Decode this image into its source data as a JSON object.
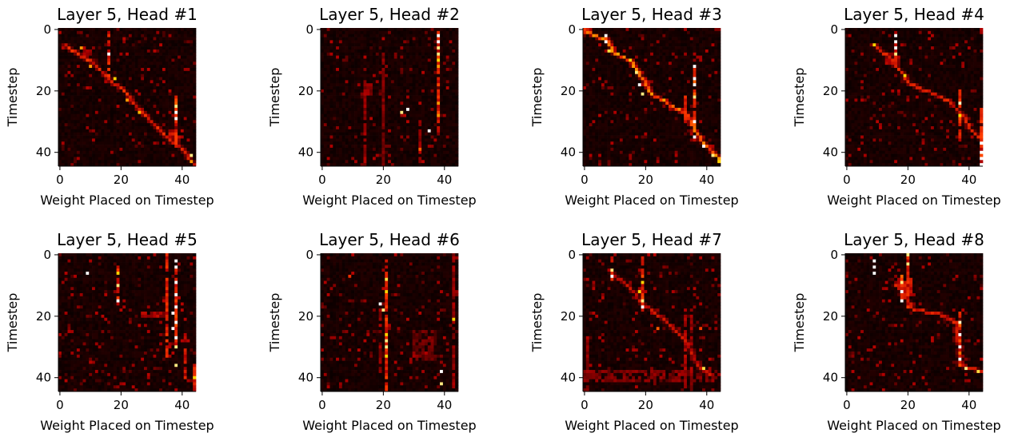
{
  "figure": {
    "background": "#ffffff"
  },
  "colormap": {
    "name": "hot",
    "stops": [
      "#0b0000",
      "#b00000",
      "#ff3a00",
      "#ffd400",
      "#ffffff"
    ]
  },
  "chart_data": [
    {
      "type": "heatmap",
      "title": "Layer 5, Head #1",
      "xlabel": "Weight Placed on Timestep",
      "ylabel": "Timestep",
      "xticks": [
        0,
        20,
        40
      ],
      "yticks": [
        0,
        20,
        40
      ],
      "grid_size": 45,
      "xlim": [
        -0.5,
        44.5
      ],
      "ylim": [
        44.5,
        -0.5
      ],
      "grid": false,
      "paths": [
        {
          "pts": [
            [
              2,
              5
            ],
            [
              6,
              8
            ],
            [
              10,
              10
            ],
            [
              16,
              16
            ],
            [
              20,
              19
            ],
            [
              26,
              26
            ],
            [
              30,
              30
            ],
            [
              35,
              35
            ],
            [
              40,
              39
            ],
            [
              44,
              44
            ]
          ],
          "strength": 0.45
        }
      ],
      "columns": [
        {
          "col": 16,
          "from": 1,
          "to": 16,
          "strength": 0.55
        },
        {
          "col": 38,
          "from": 22,
          "to": 38,
          "strength": 0.6
        }
      ],
      "hotspots": [
        [
          16,
          8,
          1.0
        ],
        [
          18,
          16,
          0.8
        ],
        [
          22,
          23,
          0.7
        ],
        [
          26,
          27,
          0.75
        ],
        [
          38,
          27,
          1.0
        ],
        [
          38,
          29,
          1.0
        ],
        [
          38,
          25,
          0.9
        ],
        [
          43,
          41,
          0.9
        ],
        [
          43,
          43,
          0.7
        ],
        [
          10,
          12,
          0.7
        ],
        [
          7,
          6,
          0.7
        ]
      ],
      "clusters": [
        {
          "x": 36,
          "y": 33,
          "w": 5,
          "h": 4,
          "strength": 0.4
        },
        {
          "x": 8,
          "y": 6,
          "w": 3,
          "h": 3,
          "strength": 0.35
        }
      ]
    },
    {
      "type": "heatmap",
      "title": "Layer 5, Head #2",
      "xlabel": "Weight Placed on Timestep",
      "ylabel": "Timestep",
      "xticks": [
        0,
        20,
        40
      ],
      "yticks": [
        0,
        20,
        40
      ],
      "grid_size": 45,
      "xlim": [
        -0.5,
        44.5
      ],
      "ylim": [
        44.5,
        -0.5
      ],
      "grid": false,
      "paths": [],
      "columns": [
        {
          "col": 38,
          "from": 1,
          "to": 33,
          "strength": 0.55
        },
        {
          "col": 14,
          "from": 17,
          "to": 44,
          "strength": 0.3
        },
        {
          "col": 20,
          "from": 8,
          "to": 44,
          "strength": 0.25
        },
        {
          "col": 32,
          "from": 30,
          "to": 44,
          "strength": 0.3
        }
      ],
      "hotspots": [
        [
          38,
          2,
          1.0
        ],
        [
          38,
          4,
          1.0
        ],
        [
          38,
          6,
          0.9
        ],
        [
          38,
          8,
          0.9
        ],
        [
          38,
          10,
          0.8
        ],
        [
          38,
          12,
          0.7
        ],
        [
          28,
          26,
          1.0
        ],
        [
          26,
          27,
          0.9
        ],
        [
          35,
          33,
          1.0
        ],
        [
          38,
          24,
          0.7
        ],
        [
          38,
          28,
          0.7
        ],
        [
          32,
          39,
          0.6
        ]
      ],
      "clusters": [
        {
          "x": 13,
          "y": 18,
          "w": 4,
          "h": 4,
          "strength": 0.3
        }
      ]
    },
    {
      "type": "heatmap",
      "title": "Layer 5, Head #3",
      "xlabel": "Weight Placed on Timestep",
      "ylabel": "Timestep",
      "xticks": [
        0,
        20,
        40
      ],
      "yticks": [
        0,
        20,
        40
      ],
      "grid_size": 45,
      "xlim": [
        -0.5,
        44.5
      ],
      "ylim": [
        44.5,
        -0.5
      ],
      "grid": false,
      "paths": [
        {
          "pts": [
            [
              0,
              0
            ],
            [
              3,
              2
            ],
            [
              7,
              3
            ],
            [
              10,
              8
            ],
            [
              15,
              10
            ],
            [
              19,
              16
            ],
            [
              22,
              21
            ],
            [
              27,
              24
            ],
            [
              33,
              27
            ],
            [
              36,
              33
            ],
            [
              40,
              38
            ],
            [
              44,
              42
            ]
          ],
          "strength": 0.6
        }
      ],
      "columns": [
        {
          "col": 33,
          "from": 22,
          "to": 30,
          "strength": 0.6
        },
        {
          "col": 36,
          "from": 12,
          "to": 37,
          "strength": 0.6
        }
      ],
      "hotspots": [
        [
          7,
          2,
          1.0
        ],
        [
          7,
          4,
          1.0
        ],
        [
          8,
          7,
          0.85
        ],
        [
          15,
          10,
          0.8
        ],
        [
          17,
          14,
          0.9
        ],
        [
          18,
          18,
          1.0
        ],
        [
          19,
          21,
          0.9
        ],
        [
          36,
          12,
          1.0
        ],
        [
          36,
          16,
          1.0
        ],
        [
          36,
          18,
          1.0
        ],
        [
          36,
          22,
          0.9
        ],
        [
          36,
          30,
          1.0
        ],
        [
          36,
          35,
          1.0
        ],
        [
          39,
          38,
          1.0
        ],
        [
          42,
          41,
          0.9
        ],
        [
          44,
          43,
          0.8
        ]
      ],
      "clusters": [
        {
          "x": 0,
          "y": 0,
          "w": 3,
          "h": 2,
          "strength": 0.55
        }
      ]
    },
    {
      "type": "heatmap",
      "title": "Layer 5, Head #4",
      "xlabel": "Weight Placed on Timestep",
      "ylabel": "Timestep",
      "xticks": [
        0,
        20,
        40
      ],
      "yticks": [
        0,
        20,
        40
      ],
      "grid_size": 45,
      "xlim": [
        -0.5,
        44.5
      ],
      "ylim": [
        44.5,
        -0.5
      ],
      "grid": false,
      "paths": [
        {
          "pts": [
            [
              9,
              5
            ],
            [
              15,
              10
            ],
            [
              20,
              17
            ],
            [
              26,
              20
            ],
            [
              33,
              23
            ],
            [
              38,
              28
            ],
            [
              41,
              33
            ],
            [
              44,
              36
            ]
          ],
          "strength": 0.42
        }
      ],
      "columns": [
        {
          "col": 16,
          "from": 1,
          "to": 13,
          "strength": 0.5
        },
        {
          "col": 37,
          "from": 20,
          "to": 36,
          "strength": 0.55
        },
        {
          "col": 44,
          "from": 26,
          "to": 44,
          "strength": 0.55
        }
      ],
      "hotspots": [
        [
          16,
          2,
          1.0
        ],
        [
          16,
          4,
          1.0
        ],
        [
          16,
          6,
          1.0
        ],
        [
          16,
          8,
          0.9
        ],
        [
          9,
          5,
          0.8
        ],
        [
          19,
          15,
          0.8
        ],
        [
          37,
          24,
          0.95
        ],
        [
          37,
          28,
          0.8
        ],
        [
          44,
          37,
          1.0
        ],
        [
          44,
          40,
          1.0
        ],
        [
          44,
          42,
          1.0
        ],
        [
          44,
          44,
          1.0
        ]
      ],
      "clusters": [
        {
          "x": 13,
          "y": 8,
          "w": 5,
          "h": 4,
          "strength": 0.35
        }
      ]
    },
    {
      "type": "heatmap",
      "title": "Layer 5, Head #5",
      "xlabel": "Weight Placed on Timestep",
      "ylabel": "Timestep",
      "xticks": [
        0,
        20,
        40
      ],
      "yticks": [
        0,
        20,
        40
      ],
      "grid_size": 45,
      "xlim": [
        -0.5,
        44.5
      ],
      "ylim": [
        44.5,
        -0.5
      ],
      "grid": false,
      "paths": [],
      "columns": [
        {
          "col": 35,
          "from": 0,
          "to": 33,
          "strength": 0.55
        },
        {
          "col": 38,
          "from": 2,
          "to": 31,
          "strength": 0.6
        },
        {
          "col": 19,
          "from": 4,
          "to": 16,
          "strength": 0.55
        },
        {
          "col": 41,
          "from": 26,
          "to": 40,
          "strength": 0.45
        },
        {
          "col": 44,
          "from": 36,
          "to": 44,
          "strength": 0.5
        }
      ],
      "hotspots": [
        [
          38,
          2,
          1.0
        ],
        [
          38,
          4,
          1.0
        ],
        [
          38,
          9,
          1.0
        ],
        [
          38,
          13,
          1.0
        ],
        [
          38,
          17,
          1.0
        ],
        [
          37,
          19,
          1.0
        ],
        [
          38,
          22,
          1.0
        ],
        [
          37,
          24,
          1.0
        ],
        [
          38,
          27,
          1.0
        ],
        [
          38,
          30,
          0.9
        ],
        [
          9,
          6,
          1.0
        ],
        [
          19,
          6,
          0.8
        ],
        [
          19,
          10,
          0.9
        ],
        [
          19,
          15,
          1.0
        ],
        [
          38,
          36,
          0.9
        ],
        [
          44,
          40,
          0.8
        ]
      ],
      "clusters": [
        {
          "x": 27,
          "y": 19,
          "w": 8,
          "h": 2,
          "strength": 0.35
        }
      ]
    },
    {
      "type": "heatmap",
      "title": "Layer 5, Head #6",
      "xlabel": "Weight Placed on Timestep",
      "ylabel": "Timestep",
      "xticks": [
        0,
        20,
        40
      ],
      "yticks": [
        0,
        20,
        40
      ],
      "grid_size": 45,
      "xlim": [
        -0.5,
        44.5
      ],
      "ylim": [
        44.5,
        -0.5
      ],
      "grid": false,
      "paths": [],
      "columns": [
        {
          "col": 21,
          "from": 2,
          "to": 44,
          "strength": 0.55
        },
        {
          "col": 43,
          "from": 0,
          "to": 44,
          "strength": 0.3
        },
        {
          "col": 19,
          "from": 18,
          "to": 38,
          "strength": 0.3
        }
      ],
      "hotspots": [
        [
          21,
          8,
          0.85
        ],
        [
          21,
          12,
          0.8
        ],
        [
          19,
          16,
          1.0
        ],
        [
          20,
          18,
          0.9
        ],
        [
          21,
          26,
          0.8
        ],
        [
          21,
          28,
          0.9
        ],
        [
          21,
          30,
          0.9
        ],
        [
          21,
          33,
          0.8
        ],
        [
          39,
          38,
          1.0
        ],
        [
          39,
          42,
          0.9
        ],
        [
          43,
          21,
          0.8
        ],
        [
          9,
          7,
          0.5
        ]
      ],
      "clusters": [
        {
          "x": 30,
          "y": 25,
          "w": 8,
          "h": 10,
          "strength": 0.2
        }
      ]
    },
    {
      "type": "heatmap",
      "title": "Layer 5, Head #7",
      "xlabel": "Weight Placed on Timestep",
      "ylabel": "Timestep",
      "xticks": [
        0,
        20,
        40
      ],
      "yticks": [
        0,
        20,
        40
      ],
      "grid_size": 45,
      "xlim": [
        -0.5,
        44.5
      ],
      "ylim": [
        44.5,
        -0.5
      ],
      "grid": false,
      "paths": [
        {
          "pts": [
            [
              8,
              5
            ],
            [
              14,
              10
            ],
            [
              19,
              16
            ],
            [
              26,
              21
            ],
            [
              33,
              28
            ],
            [
              37,
              36
            ],
            [
              41,
              39
            ]
          ],
          "strength": 0.35
        }
      ],
      "columns": [
        {
          "col": 19,
          "from": 1,
          "to": 18,
          "strength": 0.55
        },
        {
          "col": 9,
          "from": 1,
          "to": 8,
          "strength": 0.55
        },
        {
          "col": 1,
          "from": 26,
          "to": 44,
          "strength": 0.3
        },
        {
          "col": 33,
          "from": 18,
          "to": 44,
          "strength": 0.35
        },
        {
          "col": 35,
          "from": 18,
          "to": 44,
          "strength": 0.3
        }
      ],
      "hotspots": [
        [
          9,
          5,
          0.9
        ],
        [
          9,
          7,
          1.0
        ],
        [
          19,
          9,
          0.8
        ],
        [
          19,
          15,
          0.9
        ],
        [
          19,
          17,
          1.0
        ],
        [
          18,
          12,
          0.8
        ],
        [
          39,
          37,
          0.85
        ],
        [
          24,
          24,
          0.6
        ],
        [
          38,
          24,
          0.55
        ]
      ],
      "clusters": [
        {
          "x": 0,
          "y": 38,
          "w": 44,
          "h": 4,
          "strength": 0.25
        }
      ]
    },
    {
      "type": "heatmap",
      "title": "Layer 5, Head #8",
      "xlabel": "Weight Placed on Timestep",
      "ylabel": "Timestep",
      "xticks": [
        0,
        20,
        40
      ],
      "yticks": [
        0,
        20,
        40
      ],
      "grid_size": 45,
      "xlim": [
        -0.5,
        44.5
      ],
      "ylim": [
        44.5,
        -0.5
      ],
      "grid": false,
      "paths": [
        {
          "pts": [
            [
              16,
              10
            ],
            [
              22,
              18
            ],
            [
              30,
              19
            ],
            [
              36,
              22
            ],
            [
              37,
              36
            ],
            [
              44,
              38
            ]
          ],
          "strength": 0.4
        }
      ],
      "columns": [
        {
          "col": 37,
          "from": 18,
          "to": 36,
          "strength": 0.65
        },
        {
          "col": 18,
          "from": 7,
          "to": 17,
          "strength": 0.6
        },
        {
          "col": 20,
          "from": 0,
          "to": 17,
          "strength": 0.5
        }
      ],
      "hotspots": [
        [
          9,
          2,
          1.0
        ],
        [
          9,
          4,
          1.0
        ],
        [
          9,
          6,
          1.0
        ],
        [
          20,
          0,
          0.9
        ],
        [
          20,
          3,
          0.9
        ],
        [
          18,
          9,
          0.9
        ],
        [
          18,
          12,
          1.0
        ],
        [
          18,
          15,
          1.0
        ],
        [
          37,
          22,
          0.95
        ],
        [
          37,
          26,
          1.0
        ],
        [
          37,
          30,
          1.0
        ],
        [
          37,
          34,
          1.0
        ],
        [
          39,
          37,
          0.9
        ],
        [
          43,
          38,
          0.85
        ]
      ],
      "clusters": [
        {
          "x": 17,
          "y": 8,
          "w": 5,
          "h": 6,
          "strength": 0.45
        }
      ]
    }
  ]
}
